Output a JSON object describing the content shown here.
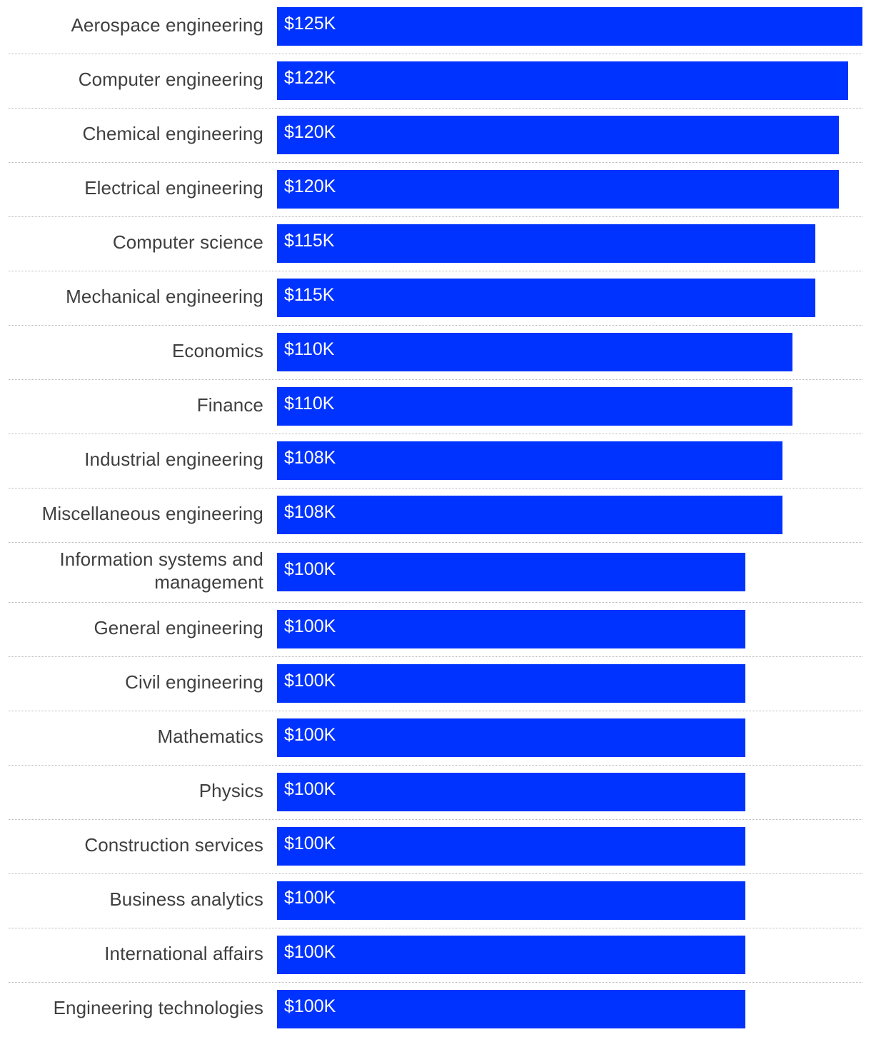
{
  "chart_data": {
    "type": "bar",
    "orientation": "horizontal",
    "title": "",
    "xlabel": "",
    "ylabel": "",
    "xlim": [
      0,
      125
    ],
    "unit_prefix": "$",
    "unit_suffix": "K",
    "bar_color": "#0033ff",
    "label_color": "#3f3f3f",
    "categories": [
      "Aerospace engineering",
      "Computer engineering",
      "Chemical engineering",
      "Electrical engineering",
      "Computer science",
      "Mechanical engineering",
      "Economics",
      "Finance",
      "Industrial engineering",
      "Miscellaneous engineering",
      "Information systems and management",
      "General engineering",
      "Civil engineering",
      "Mathematics",
      "Physics",
      "Construction services",
      "Business analytics",
      "International affairs",
      "Engineering technologies"
    ],
    "values": [
      125,
      122,
      120,
      120,
      115,
      115,
      110,
      110,
      108,
      108,
      100,
      100,
      100,
      100,
      100,
      100,
      100,
      100,
      100
    ],
    "value_labels": [
      "$125K",
      "$122K",
      "$120K",
      "$120K",
      "$115K",
      "$115K",
      "$110K",
      "$110K",
      "$108K",
      "$108K",
      "$100K",
      "$100K",
      "$100K",
      "$100K",
      "$100K",
      "$100K",
      "$100K",
      "$100K",
      "$100K"
    ]
  }
}
